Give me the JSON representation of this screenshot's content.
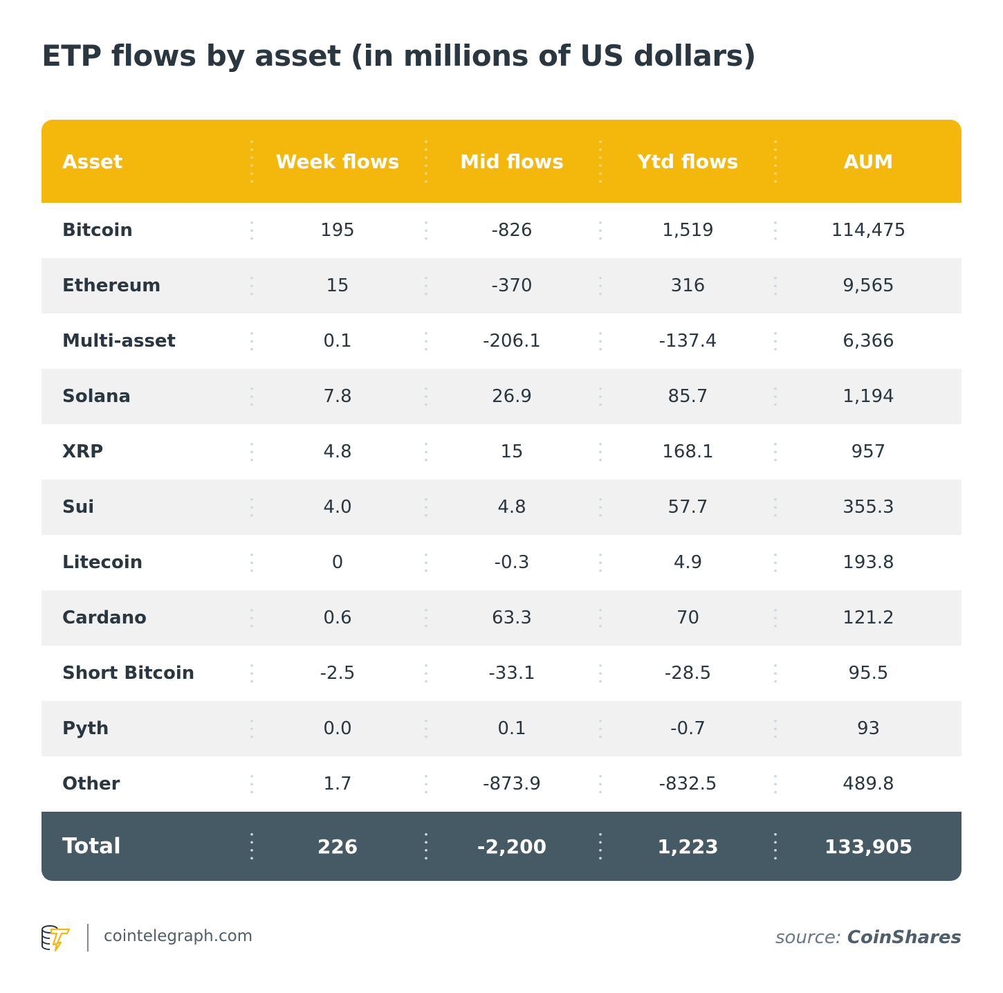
{
  "title": "ETP flows by asset (in millions of US dollars)",
  "chart_data": {
    "type": "table",
    "title": "ETP flows by asset (in millions of US dollars)",
    "columns": [
      "Asset",
      "Week flows",
      "Mid flows",
      "Ytd flows",
      "AUM"
    ],
    "rows": [
      [
        "Bitcoin",
        "195",
        "-826",
        "1,519",
        "114,475"
      ],
      [
        "Ethereum",
        "15",
        "-370",
        "316",
        "9,565"
      ],
      [
        "Multi-asset",
        "0.1",
        "-206.1",
        "-137.4",
        "6,366"
      ],
      [
        "Solana",
        "7.8",
        "26.9",
        "85.7",
        "1,194"
      ],
      [
        "XRP",
        "4.8",
        "15",
        "168.1",
        "957"
      ],
      [
        "Sui",
        "4.0",
        "4.8",
        "57.7",
        "355.3"
      ],
      [
        "Litecoin",
        "0",
        "-0.3",
        "4.9",
        "193.8"
      ],
      [
        "Cardano",
        "0.6",
        "63.3",
        "70",
        "121.2"
      ],
      [
        "Short Bitcoin",
        "-2.5",
        "-33.1",
        "-28.5",
        "95.5"
      ],
      [
        "Pyth",
        "0.0",
        "0.1",
        "-0.7",
        "93"
      ],
      [
        "Other",
        "1.7",
        "-873.9",
        "-832.5",
        "489.8"
      ]
    ],
    "total": [
      "Total",
      "226",
      "-2,200",
      "1,223",
      "133,905"
    ],
    "colors": {
      "header": "#f4b80d",
      "total": "#465a66",
      "alt_row": "#f1f1f1"
    }
  },
  "footer": {
    "site": "cointelegraph.com",
    "source_prefix": "source:",
    "source_name": "CoinShares",
    "logo": "cointelegraph-logo"
  }
}
